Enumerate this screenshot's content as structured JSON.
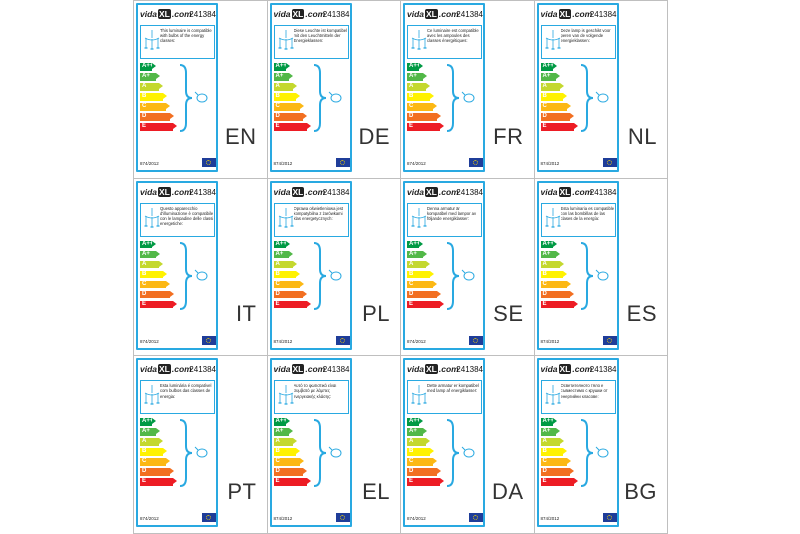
{
  "product_code": "241384",
  "brand": {
    "prefix": "vida",
    "mid": "XL",
    "suffix": ".com"
  },
  "regulation": "874/2012",
  "classes": [
    "A++",
    "A+",
    "A",
    "B",
    "C",
    "D",
    "E"
  ],
  "class_colors": [
    "#009a44",
    "#52b848",
    "#c4d82e",
    "#fff200",
    "#fcb814",
    "#f26f21",
    "#ed1c24"
  ],
  "panels": [
    {
      "lang": "EN",
      "text": "This luminaire is compatible with bulbs of the energy classes:"
    },
    {
      "lang": "DE",
      "text": "Diese Leuchte ist kompatibel mit den Leuchtmitteln der Energieklassen:"
    },
    {
      "lang": "FR",
      "text": "Ce luminaire est compatible avec les ampoules des classes énergétiques:"
    },
    {
      "lang": "NL",
      "text": "Deze lamp is geschikt voor peren van de volgende energieklassen:"
    },
    {
      "lang": "IT",
      "text": "Questo apparecchio d'illuminazione è compatibile con le lampadine delle classi energetiche:"
    },
    {
      "lang": "PL",
      "text": "Oprawa oświetleniowa jest kompatybilna z żarówkami klas energetycznych:"
    },
    {
      "lang": "SE",
      "text": "Denna armatur är kompatibel med lampor av följande energiklasser:"
    },
    {
      "lang": "ES",
      "text": "Esta luminaria es compatible con las bombillas de las clases de la energía:"
    },
    {
      "lang": "PT",
      "text": "Esta luminária é compatível com bulbos das classes de energia:"
    },
    {
      "lang": "EL",
      "text": "Αυτό το φωτιστικό είναι συμβατό με λάμπες ενεργειακής κλάσης:"
    },
    {
      "lang": "DA",
      "text": "Dette armatur er kompatibel med lamp af energiklasser:"
    },
    {
      "lang": "BG",
      "text": "Осветителното тяло е съвместимо с крушки от енергийни класове:"
    }
  ]
}
